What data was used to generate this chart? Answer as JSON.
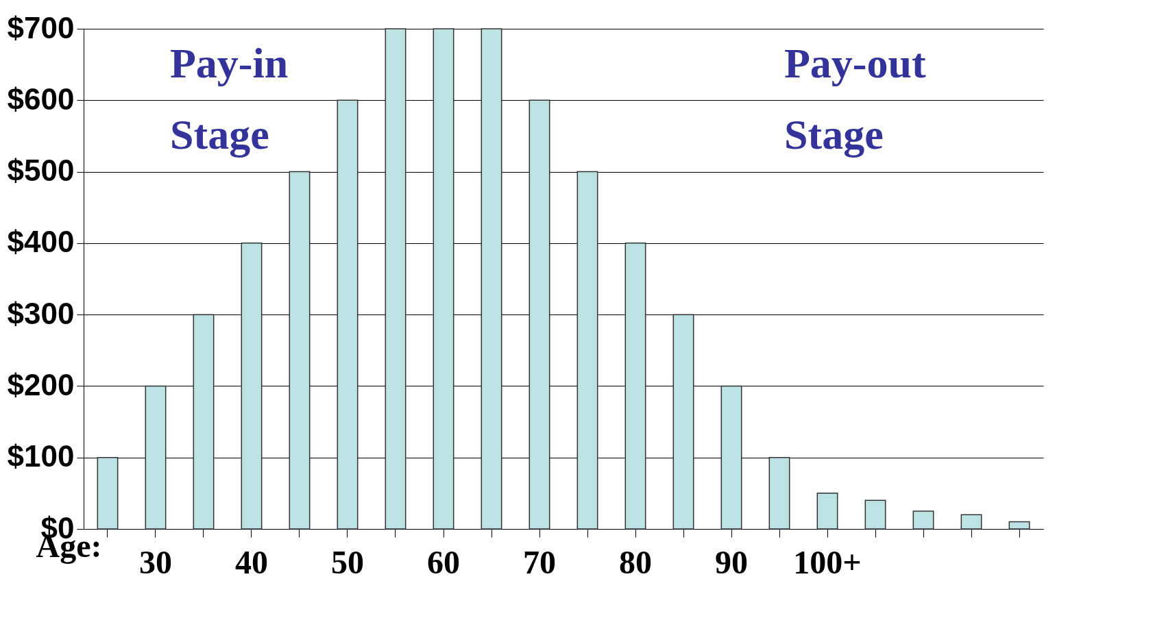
{
  "chart_data": {
    "type": "bar",
    "xlabel": "Age:",
    "categories": [
      null,
      "30",
      null,
      "40",
      null,
      "50",
      null,
      "60",
      null,
      "70",
      null,
      "80",
      null,
      "90",
      null,
      "100+",
      null,
      null,
      null,
      null
    ],
    "values": [
      100,
      200,
      300,
      400,
      500,
      600,
      700,
      700,
      700,
      600,
      500,
      400,
      300,
      200,
      100,
      50,
      40,
      25,
      20,
      10
    ],
    "color": "#bde2e4",
    "ylim": [
      0,
      700
    ],
    "yticks": [
      {
        "value": 0,
        "label": "$0"
      },
      {
        "value": 100,
        "label": "$100"
      },
      {
        "value": 200,
        "label": "$200"
      },
      {
        "value": 300,
        "label": "$300"
      },
      {
        "value": 400,
        "label": "$400"
      },
      {
        "value": 500,
        "label": "$500"
      },
      {
        "value": 600,
        "label": "$600"
      },
      {
        "value": 700,
        "label": "$700"
      }
    ],
    "grid": "y",
    "annotations": [
      "Pay-in\nStage",
      "Pay-out\nStage"
    ]
  }
}
